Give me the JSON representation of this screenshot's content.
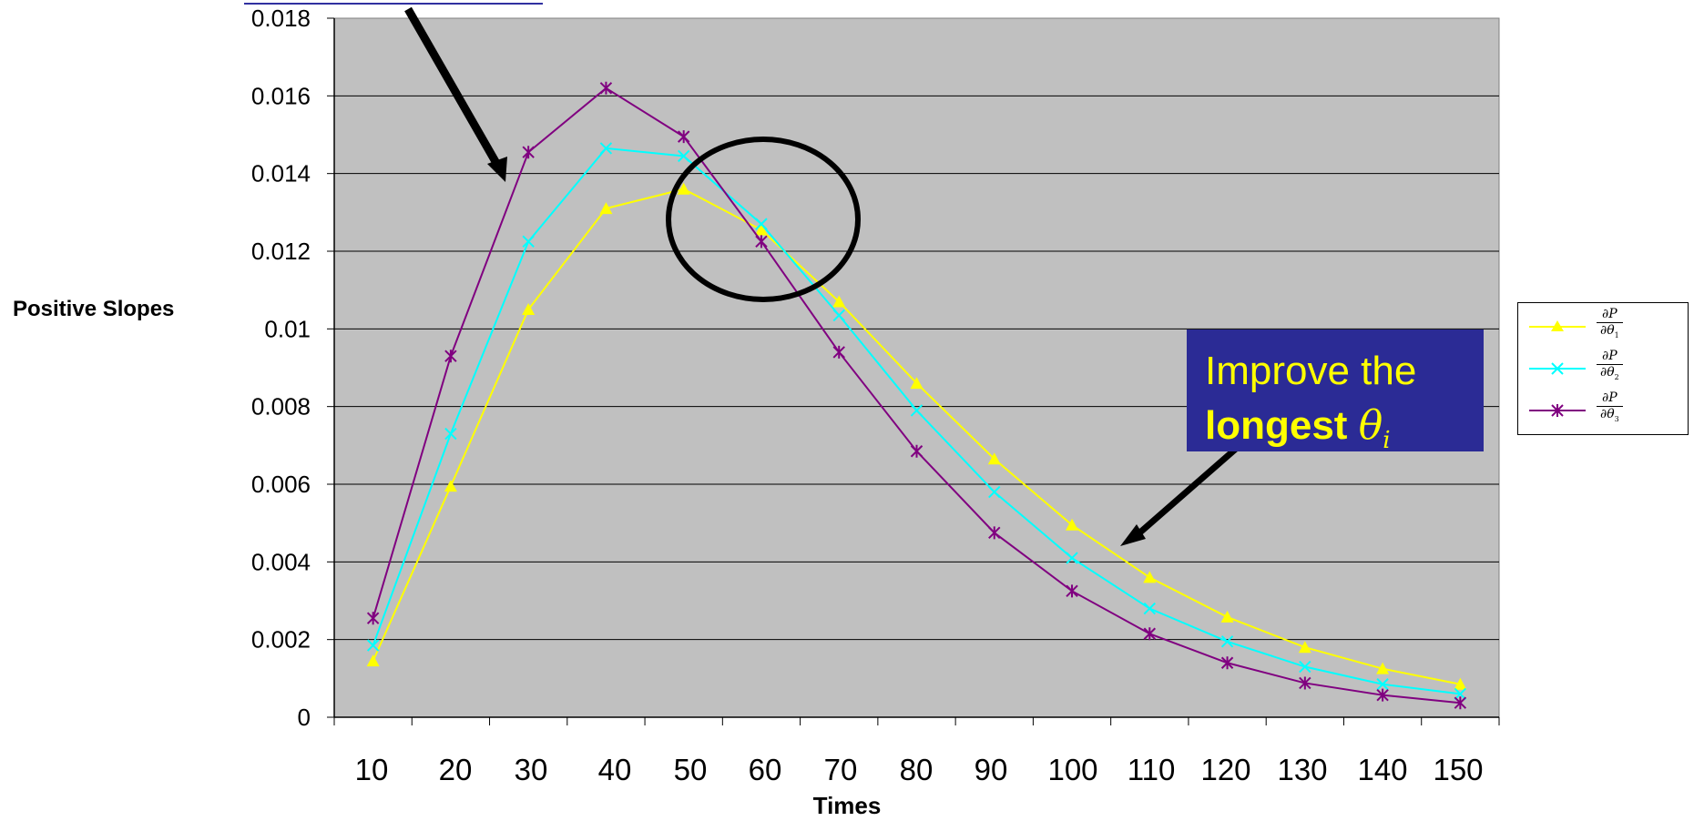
{
  "chart_data": {
    "type": "line",
    "xlabel": "Times",
    "ylabel": "Positive Slopes",
    "categories": [
      "10",
      "20",
      "30",
      "40",
      "50",
      "60",
      "70",
      "80",
      "90",
      "100",
      "110",
      "120",
      "130",
      "140",
      "150"
    ],
    "ylim": [
      0,
      0.018
    ],
    "yticks": [
      "0",
      "0.002",
      "0.004",
      "0.006",
      "0.008",
      "0.01",
      "0.012",
      "0.014",
      "0.016",
      "0.018"
    ],
    "grid": true,
    "legend_position": "right",
    "series": [
      {
        "name": "∂P/∂θ1",
        "marker": "triangle",
        "color": "#ffff00",
        "values": [
          0.00145,
          0.00595,
          0.0105,
          0.0131,
          0.0136,
          0.01255,
          0.0107,
          0.0086,
          0.00665,
          0.00495,
          0.0036,
          0.00258,
          0.0018,
          0.00125,
          0.00085
        ]
      },
      {
        "name": "∂P/∂θ2",
        "marker": "x",
        "color": "#00ffff",
        "values": [
          0.00185,
          0.0073,
          0.01225,
          0.01465,
          0.01445,
          0.0127,
          0.01035,
          0.0079,
          0.0058,
          0.0041,
          0.0028,
          0.00195,
          0.0013,
          0.00085,
          0.0006
        ]
      },
      {
        "name": "∂P/∂θ3",
        "marker": "asterisk",
        "color": "#800080",
        "values": [
          0.00255,
          0.0093,
          0.01455,
          0.0162,
          0.01495,
          0.01225,
          0.0094,
          0.00685,
          0.00475,
          0.00325,
          0.00215,
          0.0014,
          0.00088,
          0.00057,
          0.00037
        ]
      }
    ]
  },
  "callout": {
    "line1": "Improve the",
    "bold": "longest",
    "theta": "θ",
    "sub": "i"
  },
  "legend": [
    {
      "num": "∂P",
      "den": "∂θ",
      "sub": "1"
    },
    {
      "num": "∂P",
      "den": "∂θ",
      "sub": "2"
    },
    {
      "num": "∂P",
      "den": "∂θ",
      "sub": "3"
    }
  ],
  "colors": {
    "plot_bg": "#c0c0c0",
    "callout_bg": "#2b2b95",
    "callout_text": "#ffff00",
    "circle": "#000000"
  }
}
